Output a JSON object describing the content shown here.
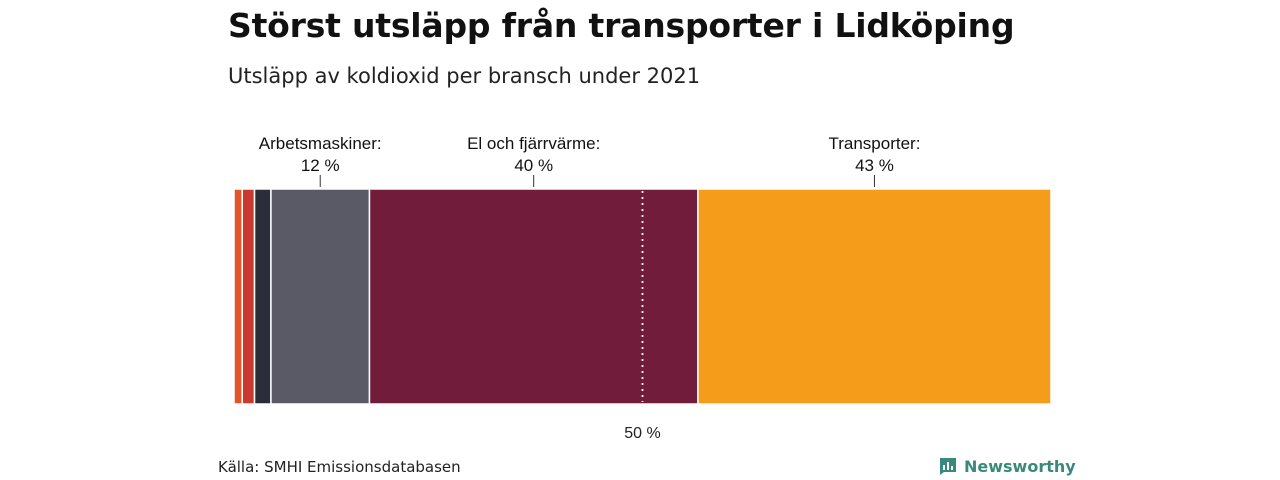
{
  "title": "Störst utsläpp från transporter i Lidköping",
  "subtitle": "Utsläpp av koldioxid per bransch under 2021",
  "source": "Källa: SMHI Emissionsdatabasen",
  "brand": {
    "name": "Newsworthy",
    "icon": "newsworthy-logo-icon",
    "color": "#3a8a7c"
  },
  "chart_data": {
    "type": "bar",
    "orientation": "horizontal-stacked",
    "unit": "%",
    "segments": [
      {
        "value": 1,
        "color": "#e2552b"
      },
      {
        "value": 1.5,
        "color": "#c9392d"
      },
      {
        "value": 2,
        "color": "#2b2d3a"
      },
      {
        "value": 12,
        "color": "#5a5966",
        "label": "Arbetsmaskiner:",
        "value_label": "12 %"
      },
      {
        "value": 40,
        "color": "#711c3b",
        "label": "El och fjärrvärme:",
        "value_label": "40 %"
      },
      {
        "value": 43,
        "color": "#f59c1a",
        "label": "Transporter:",
        "value_label": "43 %"
      }
    ],
    "reference_line": {
      "value": 50,
      "label": "50 %"
    },
    "xlim": [
      0,
      100
    ]
  }
}
